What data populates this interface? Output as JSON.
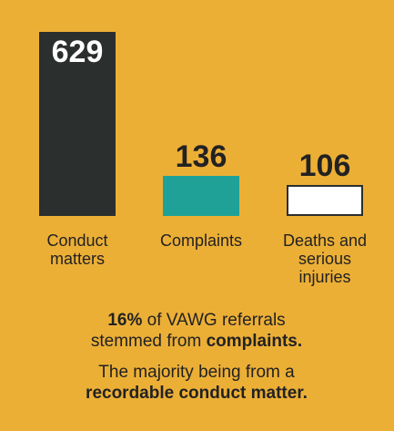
{
  "chart_data": {
    "type": "bar",
    "categories": [
      "Conduct matters",
      "Complaints",
      "Deaths and serious injuries"
    ],
    "values": [
      629,
      136,
      106
    ],
    "colors": [
      "#2b2f2d",
      "#1fa197",
      "#ffffff"
    ],
    "notes": [
      [
        {
          "text": "16%",
          "bold": true
        },
        {
          "text": " of VAWG referrals stemmed from ",
          "bold": false
        },
        {
          "text": "complaints.",
          "bold": true
        }
      ],
      [
        {
          "text": "The majority being from a ",
          "bold": false
        },
        {
          "text": "recordable conduct matter.",
          "bold": true
        }
      ]
    ]
  }
}
